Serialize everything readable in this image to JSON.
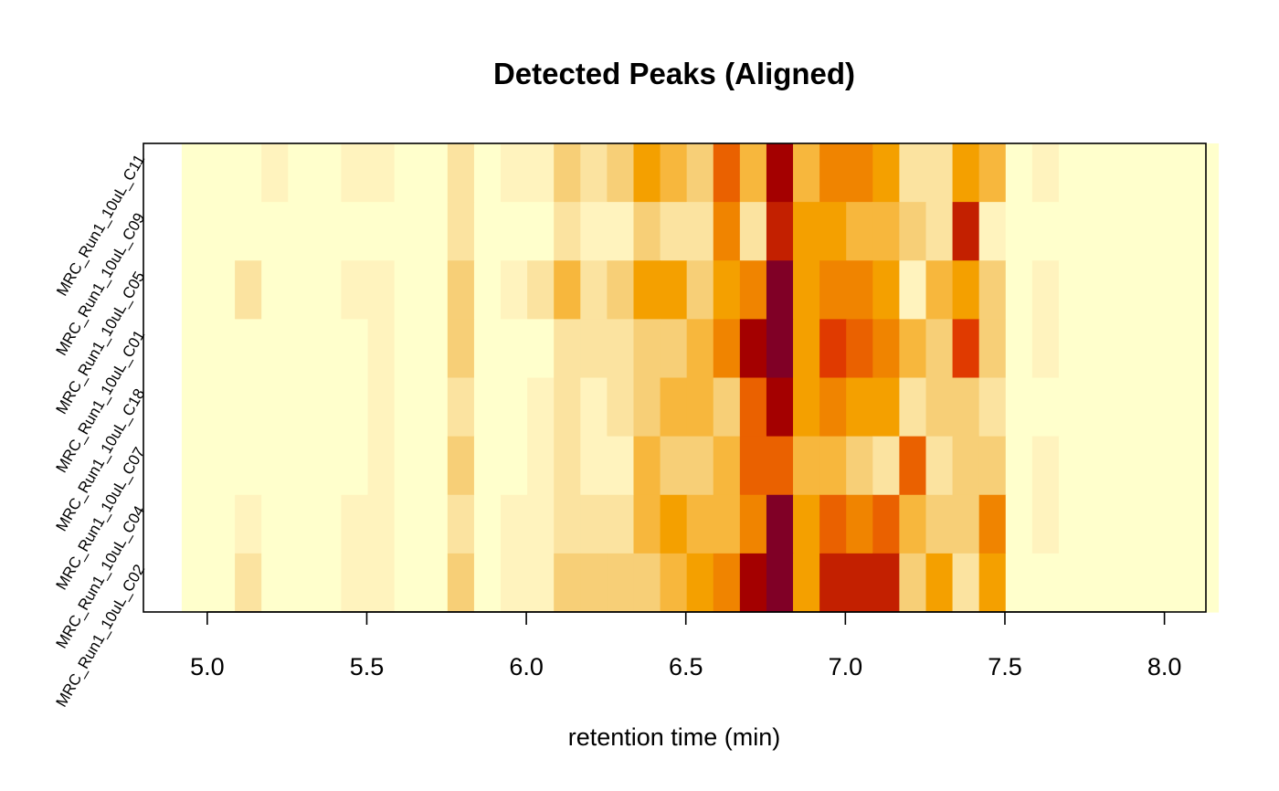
{
  "chart_data": {
    "type": "heatmap",
    "title": "Detected Peaks (Aligned)",
    "xlabel": "retention time (min)",
    "ylabel": "",
    "xlim": [
      4.8,
      8.13
    ],
    "x_ticks": [
      "5.0",
      "5.5",
      "6.0",
      "6.5",
      "7.0",
      "7.5",
      "8.0"
    ],
    "bin_start": 4.92,
    "bin_width": 0.0833,
    "rows": [
      "MRC_Run1_10uL_C11",
      "MRC_Run1_10uL_C09",
      "MRC_Run1_10uL_C05",
      "MRC_Run1_10uL_C01",
      "MRC_Run1_10uL_C18",
      "MRC_Run1_10uL_C07",
      "MRC_Run1_10uL_C04",
      "MRC_Run1_10uL_C02"
    ],
    "palette": [
      "#FFFFCC",
      "#FFF3BE",
      "#FBE3A0",
      "#F7CF77",
      "#F7B73D",
      "#F4A000",
      "#F08400",
      "#EA6100",
      "#E03A00",
      "#C32000",
      "#A40000",
      "#800026"
    ],
    "values": [
      [
        0,
        0,
        0,
        1,
        0,
        0,
        1,
        1,
        0,
        0,
        2,
        0,
        1,
        1,
        3,
        2,
        3,
        5,
        4,
        3,
        7,
        4,
        10,
        4,
        6,
        6,
        5,
        2,
        2,
        5,
        4,
        0,
        1,
        0,
        0,
        0,
        0,
        0,
        0
      ],
      [
        0,
        0,
        0,
        0,
        0,
        0,
        0,
        0,
        0,
        0,
        2,
        0,
        0,
        0,
        2,
        1,
        1,
        3,
        2,
        2,
        6,
        2,
        9,
        5,
        5,
        4,
        4,
        3,
        2,
        9,
        1,
        0,
        0,
        0,
        0,
        0,
        0,
        0,
        0
      ],
      [
        0,
        0,
        2,
        0,
        0,
        0,
        1,
        1,
        0,
        0,
        3,
        0,
        1,
        2,
        4,
        2,
        3,
        5,
        5,
        3,
        5,
        6,
        11,
        5,
        6,
        6,
        5,
        1,
        4,
        5,
        3,
        0,
        1,
        0,
        0,
        0,
        0,
        0,
        0
      ],
      [
        0,
        0,
        0,
        0,
        0,
        0,
        0,
        1,
        0,
        0,
        3,
        0,
        0,
        0,
        2,
        2,
        2,
        3,
        3,
        4,
        6,
        10,
        11,
        5,
        8,
        7,
        6,
        4,
        3,
        8,
        3,
        0,
        1,
        0,
        0,
        0,
        0,
        0,
        0
      ],
      [
        0,
        0,
        0,
        0,
        0,
        0,
        0,
        1,
        0,
        0,
        2,
        0,
        0,
        1,
        2,
        1,
        2,
        3,
        4,
        4,
        3,
        7,
        10,
        5,
        6,
        5,
        5,
        2,
        3,
        3,
        2,
        0,
        0,
        0,
        0,
        0,
        0,
        0,
        0
      ],
      [
        0,
        0,
        0,
        0,
        0,
        0,
        0,
        1,
        0,
        0,
        3,
        0,
        0,
        1,
        2,
        1,
        1,
        4,
        3,
        3,
        4,
        7,
        7,
        4,
        4,
        3,
        2,
        7,
        2,
        3,
        3,
        0,
        1,
        0,
        0,
        0,
        0,
        0,
        0
      ],
      [
        0,
        0,
        1,
        0,
        0,
        0,
        1,
        1,
        0,
        0,
        2,
        0,
        1,
        1,
        2,
        2,
        2,
        4,
        5,
        4,
        4,
        6,
        11,
        5,
        7,
        6,
        7,
        4,
        3,
        3,
        6,
        0,
        1,
        0,
        0,
        0,
        0,
        0,
        0
      ],
      [
        0,
        0,
        2,
        0,
        0,
        0,
        1,
        1,
        0,
        0,
        3,
        0,
        1,
        1,
        3,
        3,
        3,
        3,
        4,
        5,
        6,
        10,
        11,
        5,
        9,
        9,
        9,
        3,
        5,
        2,
        5,
        0,
        0,
        0,
        0,
        0,
        0,
        0,
        0
      ]
    ]
  }
}
